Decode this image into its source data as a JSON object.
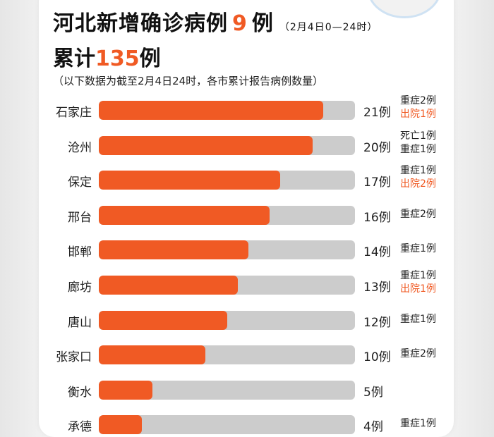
{
  "header": {
    "title_prefix": "河北新增确诊病例",
    "new_cases": "9",
    "title_suffix": "例",
    "time_range": "（2月4日0—24时）",
    "total_prefix": "累计",
    "total_cases": "135",
    "total_suffix": "例",
    "note": "（以下数据为截至2月4日24时，各市累计报告病例数量）"
  },
  "colors": {
    "accent": "#f05a24",
    "track": "#cccccc",
    "text": "#222222"
  },
  "chart_data": {
    "type": "bar",
    "orientation": "horizontal",
    "categories": [
      "石家庄",
      "沧州",
      "保定",
      "邢台",
      "邯郸",
      "廊坊",
      "唐山",
      "张家口",
      "衡水",
      "承德"
    ],
    "values": [
      21,
      20,
      17,
      16,
      14,
      13,
      12,
      10,
      5,
      4
    ],
    "value_labels": [
      "21例",
      "20例",
      "17例",
      "16例",
      "14例",
      "13例",
      "12例",
      "10例",
      "5例",
      "4例"
    ],
    "annotations": [
      [
        {
          "text": "重症2例",
          "color": "#222222"
        },
        {
          "text": "出院1例",
          "color": "#f05a24"
        }
      ],
      [
        {
          "text": "死亡1例",
          "color": "#222222"
        },
        {
          "text": "重症1例",
          "color": "#222222"
        }
      ],
      [
        {
          "text": "重症1例",
          "color": "#222222"
        },
        {
          "text": "出院2例",
          "color": "#f05a24"
        }
      ],
      [
        {
          "text": "重症2例",
          "color": "#222222"
        }
      ],
      [
        {
          "text": "重症1例",
          "color": "#222222"
        }
      ],
      [
        {
          "text": "重症1例",
          "color": "#222222"
        },
        {
          "text": "出院1例",
          "color": "#f05a24"
        }
      ],
      [
        {
          "text": "重症1例",
          "color": "#222222"
        }
      ],
      [
        {
          "text": "重症2例",
          "color": "#222222"
        }
      ],
      [],
      [
        {
          "text": "重症1例",
          "color": "#222222"
        }
      ]
    ],
    "xlim": [
      0,
      24
    ]
  }
}
